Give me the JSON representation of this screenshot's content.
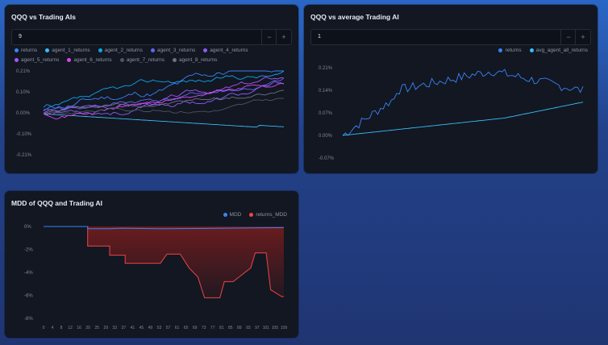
{
  "panels": {
    "p1": {
      "title": "QQQ vs Trading AIs",
      "input_value": "9",
      "minus": "−",
      "plus": "+",
      "legend": [
        {
          "label": "returns",
          "color": "#3b82f6"
        },
        {
          "label": "agent_1_returns",
          "color": "#38bdf8"
        },
        {
          "label": "agent_2_returns",
          "color": "#0ea5e9"
        },
        {
          "label": "agent_3_returns",
          "color": "#6366f1"
        },
        {
          "label": "agent_4_returns",
          "color": "#8b5cf6"
        },
        {
          "label": "agent_5_returns",
          "color": "#a855f7"
        },
        {
          "label": "agent_6_returns",
          "color": "#d946ef"
        },
        {
          "label": "agent_7_returns",
          "color": "#4b5563"
        },
        {
          "label": "agent_8_returns",
          "color": "#6b7280"
        }
      ],
      "y_ticks": [
        "0.21%",
        "0.10%",
        "0.00%",
        "-0.10%",
        "-0.21%"
      ]
    },
    "p2": {
      "title": "QQQ vs average Trading AI",
      "input_value": "1",
      "minus": "−",
      "plus": "+",
      "legend": [
        {
          "label": "returns",
          "color": "#3b82f6"
        },
        {
          "label": "avg_agent_all_returns",
          "color": "#38bdf8"
        }
      ],
      "y_ticks": [
        "0.21%",
        "0.14%",
        "0.07%",
        "0.00%",
        "-0.07%"
      ]
    },
    "p3": {
      "title": "MDD of QQQ and Trading AI",
      "legend": [
        {
          "label": "MDD",
          "color": "#3b82f6"
        },
        {
          "label": "returns_MDD",
          "color": "#ef4444"
        }
      ],
      "y_ticks": [
        "0%",
        "-2%",
        "-4%",
        "-6%",
        "-8%"
      ],
      "x_ticks": [
        "0",
        "4",
        "8",
        "12",
        "16",
        "20",
        "25",
        "29",
        "33",
        "37",
        "41",
        "45",
        "49",
        "53",
        "57",
        "61",
        "65",
        "69",
        "73",
        "77",
        "81",
        "85",
        "89",
        "93",
        "97",
        "101",
        "105",
        "109"
      ]
    }
  }
}
